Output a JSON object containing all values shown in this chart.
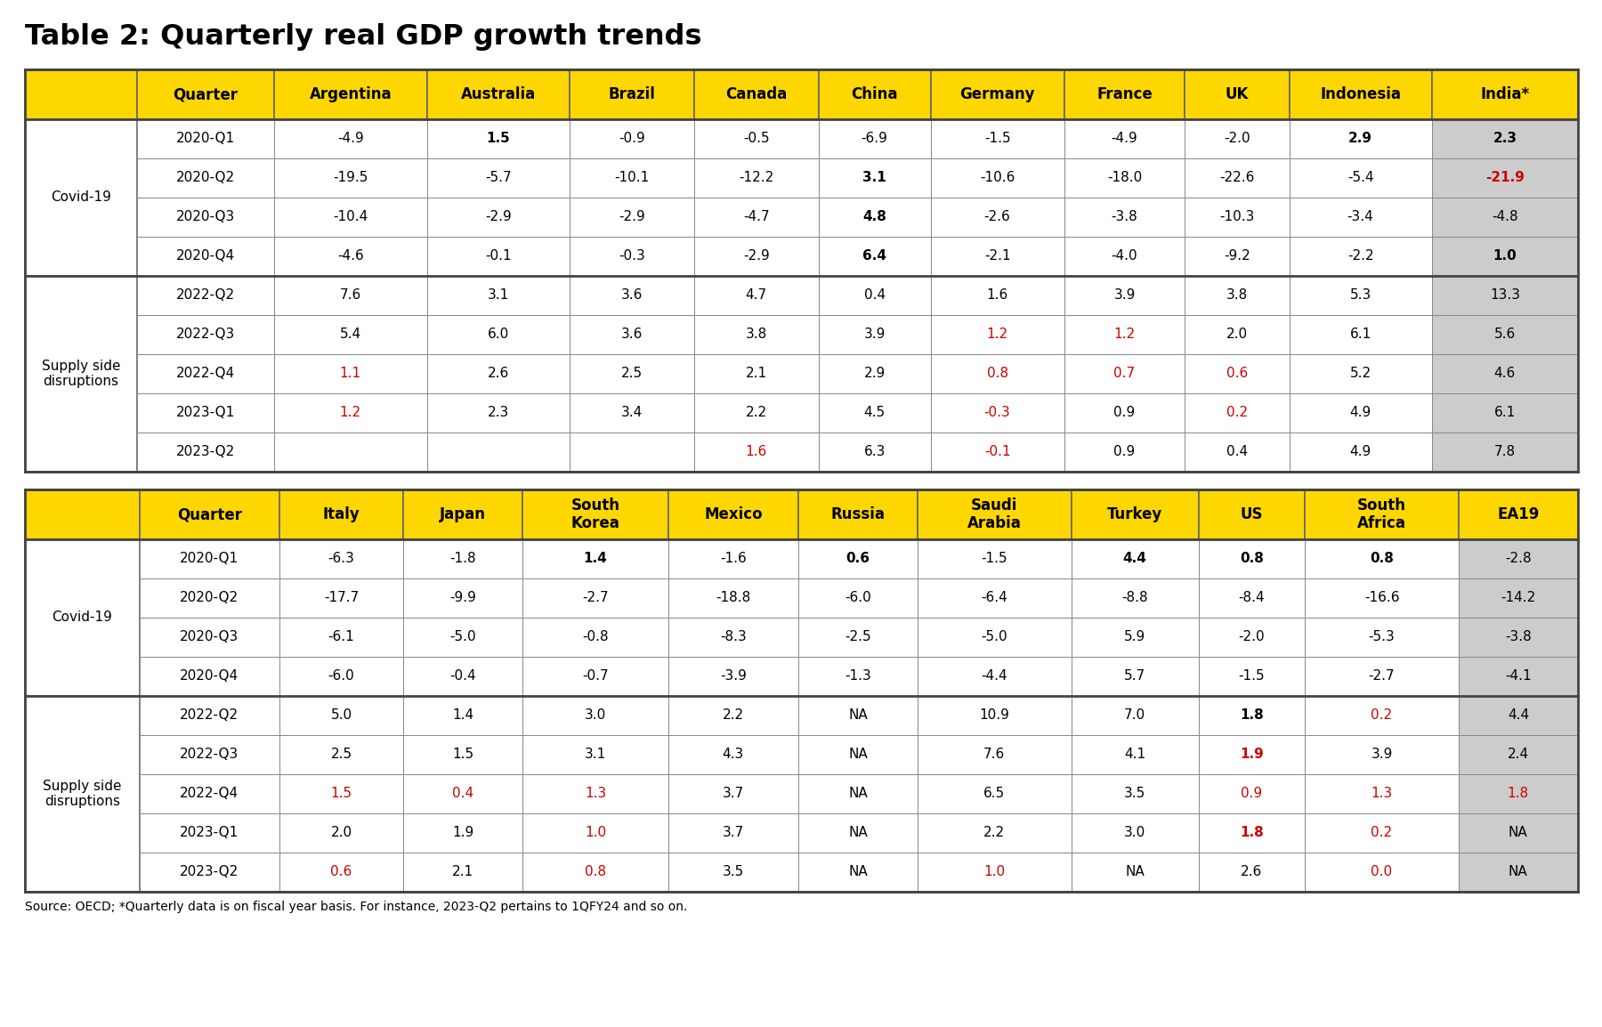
{
  "title": "Table 2: Quarterly real GDP growth trends",
  "footnote": "Source: OECD; *Quarterly data is on fiscal year basis. For instance, 2023-Q2 pertains to 1QFY24 and so on.",
  "header_bg": "#FFD700",
  "red_color": "#CC0000",
  "black_color": "#000000",
  "table1": {
    "headers": [
      "Quarter",
      "Argentina",
      "Australia",
      "Brazil",
      "Canada",
      "China",
      "Germany",
      "France",
      "UK",
      "Indonesia",
      "India*"
    ],
    "sections": [
      {
        "label": "Covid-19",
        "rows": [
          {
            "quarter": "2020-Q1",
            "values": [
              "-4.9",
              "1.5",
              "-0.9",
              "-0.5",
              "-6.9",
              "-1.5",
              "-4.9",
              "-2.0",
              "2.9",
              "2.3"
            ],
            "bold": [
              false,
              true,
              false,
              false,
              false,
              false,
              false,
              false,
              true,
              true
            ],
            "red": [
              false,
              false,
              false,
              false,
              false,
              false,
              false,
              false,
              false,
              false
            ]
          },
          {
            "quarter": "2020-Q2",
            "values": [
              "-19.5",
              "-5.7",
              "-10.1",
              "-12.2",
              "3.1",
              "-10.6",
              "-18.0",
              "-22.6",
              "-5.4",
              "-21.9"
            ],
            "bold": [
              false,
              false,
              false,
              false,
              true,
              false,
              false,
              false,
              false,
              true
            ],
            "red": [
              false,
              false,
              false,
              false,
              false,
              false,
              false,
              false,
              false,
              true
            ]
          },
          {
            "quarter": "2020-Q3",
            "values": [
              "-10.4",
              "-2.9",
              "-2.9",
              "-4.7",
              "4.8",
              "-2.6",
              "-3.8",
              "-10.3",
              "-3.4",
              "-4.8"
            ],
            "bold": [
              false,
              false,
              false,
              false,
              true,
              false,
              false,
              false,
              false,
              false
            ],
            "red": [
              false,
              false,
              false,
              false,
              false,
              false,
              false,
              false,
              false,
              false
            ]
          },
          {
            "quarter": "2020-Q4",
            "values": [
              "-4.6",
              "-0.1",
              "-0.3",
              "-2.9",
              "6.4",
              "-2.1",
              "-4.0",
              "-9.2",
              "-2.2",
              "1.0"
            ],
            "bold": [
              false,
              false,
              false,
              false,
              true,
              false,
              false,
              false,
              false,
              true
            ],
            "red": [
              false,
              false,
              false,
              false,
              false,
              false,
              false,
              false,
              false,
              false
            ]
          }
        ]
      },
      {
        "label": "Supply side\ndisruptions",
        "rows": [
          {
            "quarter": "2022-Q2",
            "values": [
              "7.6",
              "3.1",
              "3.6",
              "4.7",
              "0.4",
              "1.6",
              "3.9",
              "3.8",
              "5.3",
              "13.3"
            ],
            "bold": [
              false,
              false,
              false,
              false,
              false,
              false,
              false,
              false,
              false,
              false
            ],
            "red": [
              false,
              false,
              false,
              false,
              false,
              false,
              false,
              false,
              false,
              false
            ]
          },
          {
            "quarter": "2022-Q3",
            "values": [
              "5.4",
              "6.0",
              "3.6",
              "3.8",
              "3.9",
              "1.2",
              "1.2",
              "2.0",
              "6.1",
              "5.6"
            ],
            "bold": [
              false,
              false,
              false,
              false,
              false,
              false,
              false,
              false,
              false,
              false
            ],
            "red": [
              false,
              false,
              false,
              false,
              false,
              true,
              true,
              false,
              false,
              false
            ]
          },
          {
            "quarter": "2022-Q4",
            "values": [
              "1.1",
              "2.6",
              "2.5",
              "2.1",
              "2.9",
              "0.8",
              "0.7",
              "0.6",
              "5.2",
              "4.6"
            ],
            "bold": [
              false,
              false,
              false,
              false,
              false,
              false,
              false,
              false,
              false,
              false
            ],
            "red": [
              true,
              false,
              false,
              false,
              false,
              true,
              true,
              true,
              false,
              false
            ]
          },
          {
            "quarter": "2023-Q1",
            "values": [
              "1.2",
              "2.3",
              "3.4",
              "2.2",
              "4.5",
              "-0.3",
              "0.9",
              "0.2",
              "4.9",
              "6.1"
            ],
            "bold": [
              false,
              false,
              false,
              false,
              false,
              false,
              false,
              false,
              false,
              false
            ],
            "red": [
              true,
              false,
              false,
              false,
              false,
              true,
              false,
              true,
              false,
              false
            ]
          },
          {
            "quarter": "2023-Q2",
            "values": [
              "",
              "",
              "",
              "1.6",
              "6.3",
              "-0.1",
              "0.9",
              "0.4",
              "4.9",
              "7.8"
            ],
            "bold": [
              false,
              false,
              false,
              false,
              false,
              false,
              false,
              false,
              false,
              false
            ],
            "red": [
              false,
              false,
              false,
              true,
              false,
              true,
              false,
              false,
              false,
              false
            ]
          }
        ]
      }
    ]
  },
  "table2": {
    "headers": [
      "Quarter",
      "Italy",
      "Japan",
      "South\nKorea",
      "Mexico",
      "Russia",
      "Saudi\nArabia",
      "Turkey",
      "US",
      "South\nAfrica",
      "EA19"
    ],
    "sections": [
      {
        "label": "Covid-19",
        "rows": [
          {
            "quarter": "2020-Q1",
            "values": [
              "-6.3",
              "-1.8",
              "1.4",
              "-1.6",
              "0.6",
              "-1.5",
              "4.4",
              "0.8",
              "0.8",
              "-2.8"
            ],
            "bold": [
              false,
              false,
              true,
              false,
              true,
              false,
              true,
              true,
              true,
              false
            ],
            "red": [
              false,
              false,
              false,
              false,
              false,
              false,
              false,
              false,
              false,
              false
            ]
          },
          {
            "quarter": "2020-Q2",
            "values": [
              "-17.7",
              "-9.9",
              "-2.7",
              "-18.8",
              "-6.0",
              "-6.4",
              "-8.8",
              "-8.4",
              "-16.6",
              "-14.2"
            ],
            "bold": [
              false,
              false,
              false,
              false,
              false,
              false,
              false,
              false,
              false,
              false
            ],
            "red": [
              false,
              false,
              false,
              false,
              false,
              false,
              false,
              false,
              false,
              false
            ]
          },
          {
            "quarter": "2020-Q3",
            "values": [
              "-6.1",
              "-5.0",
              "-0.8",
              "-8.3",
              "-2.5",
              "-5.0",
              "5.9",
              "-2.0",
              "-5.3",
              "-3.8"
            ],
            "bold": [
              false,
              false,
              false,
              false,
              false,
              false,
              false,
              false,
              false,
              false
            ],
            "red": [
              false,
              false,
              false,
              false,
              false,
              false,
              false,
              false,
              false,
              false
            ]
          },
          {
            "quarter": "2020-Q4",
            "values": [
              "-6.0",
              "-0.4",
              "-0.7",
              "-3.9",
              "-1.3",
              "-4.4",
              "5.7",
              "-1.5",
              "-2.7",
              "-4.1"
            ],
            "bold": [
              false,
              false,
              false,
              false,
              false,
              false,
              false,
              false,
              false,
              false
            ],
            "red": [
              false,
              false,
              false,
              false,
              false,
              false,
              false,
              false,
              false,
              false
            ]
          }
        ]
      },
      {
        "label": "Supply side\ndisruptions",
        "rows": [
          {
            "quarter": "2022-Q2",
            "values": [
              "5.0",
              "1.4",
              "3.0",
              "2.2",
              "NA",
              "10.9",
              "7.0",
              "1.8",
              "0.2",
              "4.4"
            ],
            "bold": [
              false,
              false,
              false,
              false,
              false,
              false,
              false,
              true,
              false,
              false
            ],
            "red": [
              false,
              false,
              false,
              false,
              false,
              false,
              false,
              false,
              true,
              false
            ]
          },
          {
            "quarter": "2022-Q3",
            "values": [
              "2.5",
              "1.5",
              "3.1",
              "4.3",
              "NA",
              "7.6",
              "4.1",
              "1.9",
              "3.9",
              "2.4"
            ],
            "bold": [
              false,
              false,
              false,
              false,
              false,
              false,
              false,
              true,
              false,
              false
            ],
            "red": [
              false,
              false,
              false,
              false,
              false,
              false,
              false,
              true,
              false,
              false
            ]
          },
          {
            "quarter": "2022-Q4",
            "values": [
              "1.5",
              "0.4",
              "1.3",
              "3.7",
              "NA",
              "6.5",
              "3.5",
              "0.9",
              "1.3",
              "1.8"
            ],
            "bold": [
              false,
              false,
              false,
              false,
              false,
              false,
              false,
              false,
              false,
              false
            ],
            "red": [
              true,
              true,
              true,
              false,
              false,
              false,
              false,
              true,
              true,
              true
            ]
          },
          {
            "quarter": "2023-Q1",
            "values": [
              "2.0",
              "1.9",
              "1.0",
              "3.7",
              "NA",
              "2.2",
              "3.0",
              "1.8",
              "0.2",
              "NA"
            ],
            "bold": [
              false,
              false,
              false,
              false,
              false,
              false,
              false,
              true,
              false,
              false
            ],
            "red": [
              false,
              false,
              true,
              false,
              false,
              false,
              false,
              true,
              true,
              false
            ]
          },
          {
            "quarter": "2023-Q2",
            "values": [
              "0.6",
              "2.1",
              "0.8",
              "3.5",
              "NA",
              "1.0",
              "NA",
              "2.6",
              "0.0",
              "NA"
            ],
            "bold": [
              false,
              false,
              false,
              false,
              false,
              false,
              false,
              false,
              false,
              false
            ],
            "red": [
              true,
              false,
              true,
              false,
              false,
              true,
              false,
              false,
              true,
              false
            ]
          }
        ]
      }
    ]
  }
}
